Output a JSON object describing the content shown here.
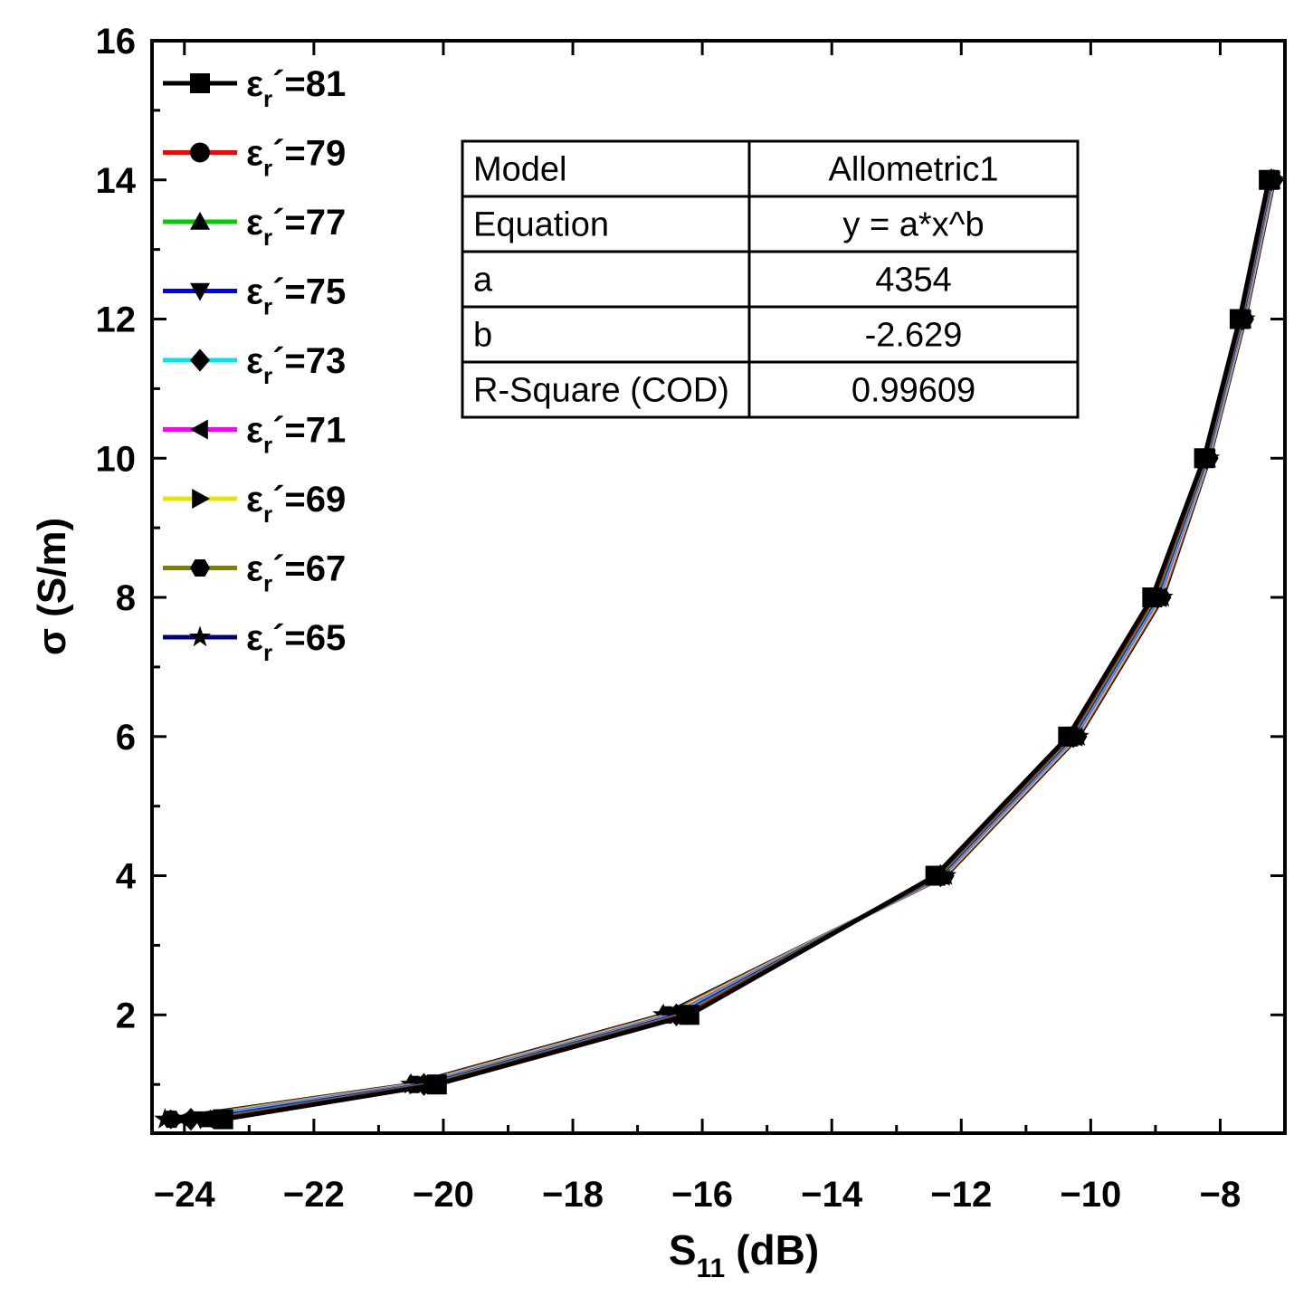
{
  "chart_data": {
    "type": "line",
    "xlabel": "S",
    "xlabel_sub": "11",
    "xlabel_unit": "(dB)",
    "ylabel": "σ (S/m)",
    "xlim": [
      -24.5,
      -7.0
    ],
    "ylim": [
      0.3,
      16
    ],
    "xticks": [
      -24,
      -22,
      -20,
      -18,
      -16,
      -14,
      -12,
      -10,
      -8
    ],
    "xtick_labels": [
      "−24",
      "−22",
      "−20",
      "−18",
      "−16",
      "−14",
      "−12",
      "−10",
      "−8"
    ],
    "yticks": [
      2,
      4,
      6,
      8,
      10,
      12,
      14,
      16
    ],
    "ytick_labels": [
      "2",
      "4",
      "6",
      "8",
      "10",
      "12",
      "14",
      "16"
    ],
    "grid": false,
    "legend_position": "top-left",
    "y": [
      0.5,
      1,
      2,
      4,
      6,
      8,
      10,
      12,
      14
    ],
    "series": [
      {
        "name_prefix": "ε",
        "name_sub": "r",
        "name_suffix": "´=81",
        "color": "#000000",
        "marker": "square",
        "x": [
          -23.4,
          -20.1,
          -16.2,
          -12.4,
          -10.35,
          -9.05,
          -8.25,
          -7.7,
          -7.25
        ]
      },
      {
        "name_prefix": "ε",
        "name_sub": "r",
        "name_suffix": "´=79",
        "color": "#ff0000",
        "marker": "circle",
        "x": [
          -23.5,
          -20.15,
          -16.25,
          -12.38,
          -10.33,
          -9.03,
          -8.24,
          -7.69,
          -7.24
        ]
      },
      {
        "name_prefix": "ε",
        "name_sub": "r",
        "name_suffix": "´=77",
        "color": "#00cc00",
        "marker": "triangle-up",
        "x": [
          -23.6,
          -20.2,
          -16.3,
          -12.36,
          -10.31,
          -9.01,
          -8.23,
          -7.68,
          -7.23
        ]
      },
      {
        "name_prefix": "ε",
        "name_sub": "r",
        "name_suffix": "´=75",
        "color": "#0000ff",
        "marker": "triangle-down",
        "x": [
          -23.75,
          -20.25,
          -16.35,
          -12.34,
          -10.29,
          -8.99,
          -8.22,
          -7.67,
          -7.22
        ]
      },
      {
        "name_prefix": "ε",
        "name_sub": "r",
        "name_suffix": "´=73",
        "color": "#00e5e5",
        "marker": "diamond",
        "x": [
          -23.9,
          -20.3,
          -16.4,
          -12.32,
          -10.27,
          -8.97,
          -8.21,
          -7.66,
          -7.21
        ]
      },
      {
        "name_prefix": "ε",
        "name_sub": "r",
        "name_suffix": "´=71",
        "color": "#ff00ff",
        "marker": "triangle-left",
        "x": [
          -24.0,
          -20.35,
          -16.45,
          -12.3,
          -10.25,
          -8.95,
          -8.2,
          -7.65,
          -7.2
        ]
      },
      {
        "name_prefix": "ε",
        "name_sub": "r",
        "name_suffix": "´=69",
        "color": "#e5e500",
        "marker": "triangle-right",
        "x": [
          -24.1,
          -20.4,
          -16.5,
          -12.28,
          -10.23,
          -8.93,
          -8.19,
          -7.64,
          -7.19
        ]
      },
      {
        "name_prefix": "ε",
        "name_sub": "r",
        "name_suffix": "´=67",
        "color": "#808000",
        "marker": "hexagon",
        "x": [
          -24.2,
          -20.45,
          -16.55,
          -12.26,
          -10.21,
          -8.91,
          -8.18,
          -7.63,
          -7.18
        ]
      },
      {
        "name_prefix": "ε",
        "name_sub": "r",
        "name_suffix": "´=65",
        "color": "#000080",
        "marker": "star",
        "x": [
          -24.3,
          -20.5,
          -16.6,
          -12.24,
          -10.19,
          -8.89,
          -8.17,
          -7.62,
          -7.17
        ]
      }
    ],
    "fit_table": {
      "rows": [
        [
          "Model",
          "Allometric1"
        ],
        [
          "Equation",
          "y = a*x^b"
        ],
        [
          "a",
          "4354"
        ],
        [
          "b",
          "-2.629"
        ],
        [
          "R-Square (COD)",
          "0.99609"
        ]
      ]
    }
  }
}
